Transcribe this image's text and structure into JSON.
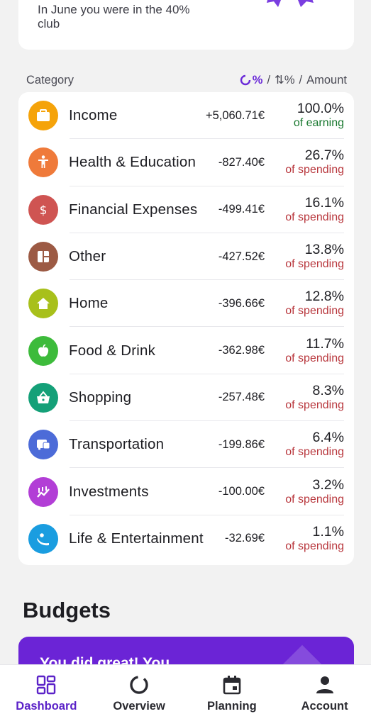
{
  "top_card": {
    "message": "In June you were in the 40% club"
  },
  "category_header": {
    "title": "Category",
    "opt_percent": "%",
    "opt_sort": "⇅%",
    "opt_amount": "Amount",
    "separator": "/"
  },
  "categories": [
    {
      "name": "Income",
      "amount": "+5,060.71€",
      "percent": "100.0%",
      "label": "of earning",
      "type": "earn",
      "icon": "briefcase-icon",
      "color": "#f5a30a"
    },
    {
      "name": "Health & Education",
      "amount": "-827.40€",
      "percent": "26.7%",
      "label": "of spending",
      "type": "spend",
      "icon": "person-icon",
      "color": "#ef7a3a"
    },
    {
      "name": "Financial Expenses",
      "amount": "-499.41€",
      "percent": "16.1%",
      "label": "of spending",
      "type": "spend",
      "icon": "dollar-icon",
      "color": "#cf5452"
    },
    {
      "name": "Other",
      "amount": "-427.52€",
      "percent": "13.8%",
      "label": "of spending",
      "type": "spend",
      "icon": "grid-icon",
      "color": "#9c5a44"
    },
    {
      "name": "Home",
      "amount": "-396.66€",
      "percent": "12.8%",
      "label": "of spending",
      "type": "spend",
      "icon": "home-icon",
      "color": "#a8c01b"
    },
    {
      "name": "Food & Drink",
      "amount": "-362.98€",
      "percent": "11.7%",
      "label": "of spending",
      "type": "spend",
      "icon": "apple-icon",
      "color": "#3dbb3b"
    },
    {
      "name": "Shopping",
      "amount": "-257.48€",
      "percent": "8.3%",
      "label": "of spending",
      "type": "spend",
      "icon": "basket-icon",
      "color": "#14a078"
    },
    {
      "name": "Transportation",
      "amount": "-199.86€",
      "percent": "6.4%",
      "label": "of spending",
      "type": "spend",
      "icon": "bus-icon",
      "color": "#4c6bd8"
    },
    {
      "name": "Investments",
      "amount": "-100.00€",
      "percent": "3.2%",
      "label": "of spending",
      "type": "spend",
      "icon": "chart-icon",
      "color": "#b23ed6"
    },
    {
      "name": "Life & Entertainment",
      "amount": "-32.69€",
      "percent": "1.1%",
      "label": "of spending",
      "type": "spend",
      "icon": "relax-icon",
      "color": "#1a9de0"
    }
  ],
  "budgets": {
    "title": "Budgets",
    "card_text": "You did great! You"
  },
  "nav": [
    {
      "label": "Dashboard",
      "icon": "dashboard-icon",
      "active": true
    },
    {
      "label": "Overview",
      "icon": "donut-icon",
      "active": false
    },
    {
      "label": "Planning",
      "icon": "calendar-icon",
      "active": false
    },
    {
      "label": "Account",
      "icon": "account-icon",
      "active": false
    }
  ]
}
